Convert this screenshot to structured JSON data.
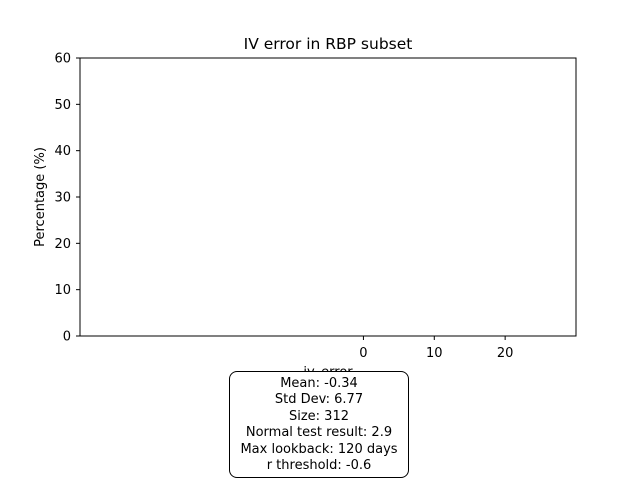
{
  "chart_data": {
    "type": "bar",
    "title": "IV error in RBP subset",
    "xlabel": "iv_error",
    "ylabel": "Percentage (%)",
    "xlim": [
      -40,
      30
    ],
    "ylim": [
      0,
      60
    ],
    "xticks": [
      0,
      10,
      20
    ],
    "yticks": [
      0,
      10,
      20,
      30,
      40,
      50,
      60
    ],
    "bins": [],
    "values": [],
    "grid": false
  },
  "stats": {
    "mean": "Mean: -0.34",
    "std_dev": "Std Dev: 6.77",
    "size": "Size: 312",
    "normal_test": "Normal test result: 2.9",
    "max_lookback": "Max lookback: 120 days",
    "r_threshold": "r threshold: -0.6"
  }
}
